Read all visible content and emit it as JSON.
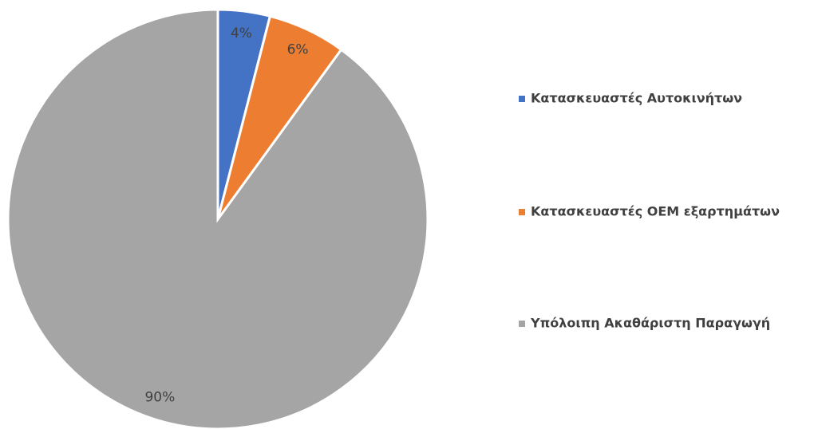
{
  "chart_data": {
    "type": "pie",
    "categories": [
      "Κατασκευαστές Αυτοκινήτων",
      "Κατασκευαστές OEM εξαρτημάτων",
      "Υπόλοιπη Ακαθάριστη Παραγωγή"
    ],
    "values": [
      4,
      6,
      90
    ],
    "value_labels": [
      "4%",
      "6%",
      "90%"
    ],
    "colors": [
      "#4472c4",
      "#ed7d31",
      "#a5a5a5"
    ],
    "legend": "right"
  }
}
